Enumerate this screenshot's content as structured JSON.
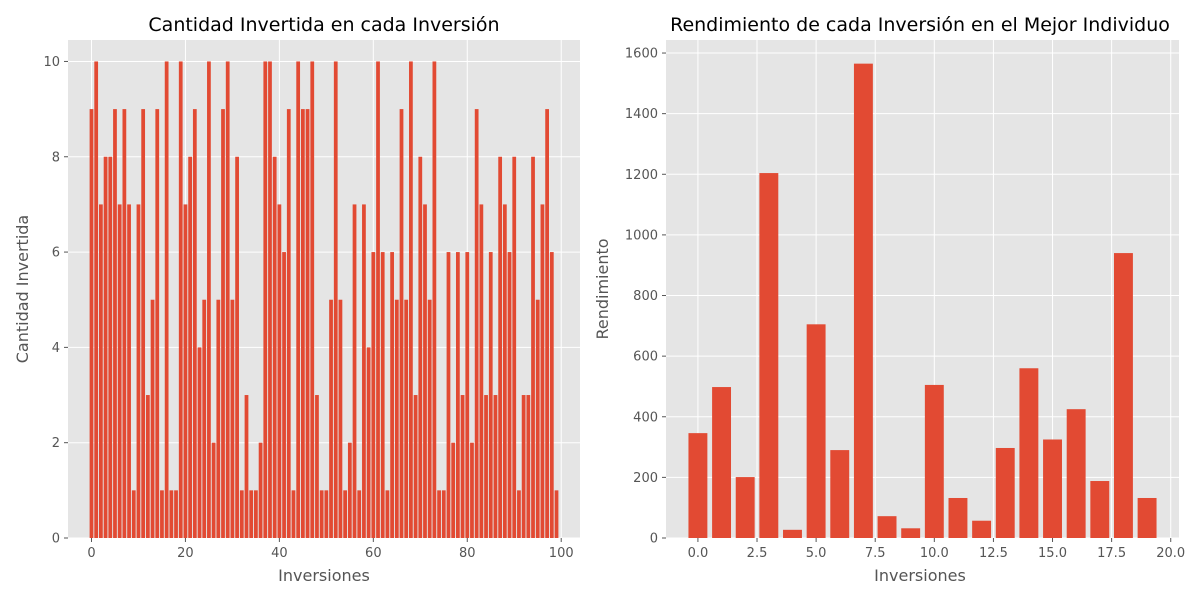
{
  "chart_data": [
    {
      "type": "bar",
      "title": "Cantidad Invertida en cada Inversión",
      "xlabel": "Inversiones",
      "ylabel": "Cantidad Invertida",
      "x": [
        0,
        1,
        2,
        3,
        4,
        5,
        6,
        7,
        8,
        9,
        10,
        11,
        12,
        13,
        14,
        15,
        16,
        17,
        18,
        19,
        20,
        21,
        22,
        23,
        24,
        25,
        26,
        27,
        28,
        29,
        30,
        31,
        32,
        33,
        34,
        35,
        36,
        37,
        38,
        39,
        40,
        41,
        42,
        43,
        44,
        45,
        46,
        47,
        48,
        49,
        50,
        51,
        52,
        53,
        54,
        55,
        56,
        57,
        58,
        59,
        60,
        61,
        62,
        63,
        64,
        65,
        66,
        67,
        68,
        69,
        70,
        71,
        72,
        73,
        74,
        75,
        76,
        77,
        78,
        79,
        80,
        81,
        82,
        83,
        84,
        85,
        86,
        87,
        88,
        89,
        90,
        91,
        92,
        93,
        94,
        95,
        96,
        97,
        98,
        99
      ],
      "values": [
        9,
        10,
        7,
        8,
        8,
        9,
        7,
        9,
        7,
        1,
        7,
        9,
        3,
        5,
        9,
        1,
        10,
        1,
        1,
        10,
        7,
        8,
        9,
        4,
        5,
        10,
        2,
        5,
        9,
        10,
        5,
        8,
        1,
        3,
        1,
        1,
        2,
        10,
        10,
        8,
        7,
        6,
        9,
        1,
        10,
        9,
        9,
        10,
        3,
        1,
        1,
        5,
        10,
        5,
        1,
        2,
        7,
        1,
        7,
        4,
        6,
        10,
        6,
        1,
        6,
        5,
        9,
        5,
        10,
        3,
        8,
        7,
        5,
        10,
        1,
        1,
        6,
        2,
        6,
        3,
        6,
        2,
        9,
        7,
        3,
        6,
        3,
        8,
        7,
        6,
        8,
        1,
        3,
        3,
        8,
        5,
        7,
        9,
        6,
        1
      ],
      "xlim": [
        -5,
        104
      ],
      "ylim": [
        0,
        10.45
      ],
      "xticks": [
        "0",
        "20",
        "40",
        "60",
        "80",
        "100"
      ],
      "yticks": [
        "0",
        "2",
        "4",
        "6",
        "8",
        "10"
      ],
      "grid": true
    },
    {
      "type": "bar",
      "title": "Rendimiento de cada Inversión en el Mejor Individuo",
      "xlabel": "Inversiones",
      "ylabel": "Rendimiento",
      "x": [
        0,
        1,
        2,
        3,
        4,
        5,
        6,
        7,
        8,
        9,
        10,
        11,
        12,
        13,
        14,
        15,
        16,
        17,
        18,
        19
      ],
      "values": [
        346,
        498,
        201,
        1204,
        27,
        705,
        290,
        1565,
        72,
        32,
        505,
        132,
        57,
        297,
        560,
        325,
        425,
        188,
        940,
        132
      ],
      "xlim": [
        -1.35,
        20.35
      ],
      "ylim": [
        0,
        1643
      ],
      "xticks": [
        "0.0",
        "2.5",
        "5.0",
        "7.5",
        "10.0",
        "12.5",
        "15.0",
        "17.5",
        "20.0"
      ],
      "yticks": [
        "0",
        "200",
        "400",
        "600",
        "800",
        "1000",
        "1200",
        "1400",
        "1600"
      ],
      "grid": true
    }
  ]
}
